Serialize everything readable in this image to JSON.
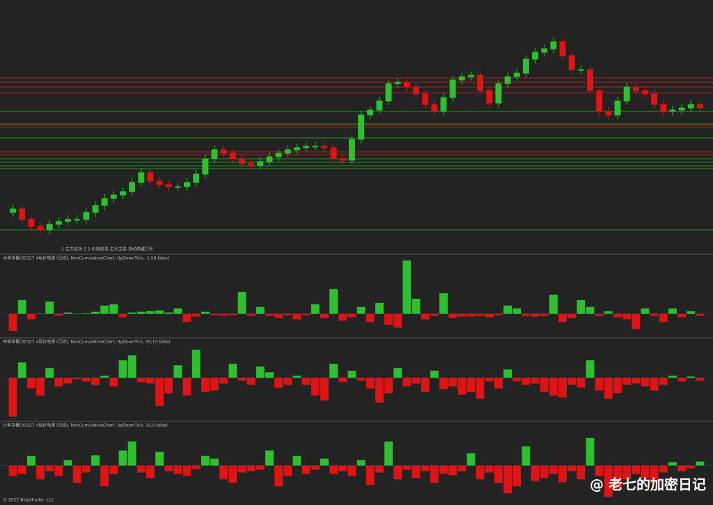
{
  "chart_data": {
    "type": "candlestick",
    "annotation": "1-主力进场 1 2-价格振荡-主买主卖-自动隐藏打开",
    "up_color": "#2fc02f",
    "down_color": "#e01414",
    "ylim": [
      0,
      345
    ],
    "open": [
      55,
      60,
      45,
      35,
      30,
      38,
      42,
      45,
      45,
      55,
      65,
      75,
      80,
      85,
      98,
      112,
      100,
      95,
      92,
      92,
      98,
      110,
      132,
      145,
      140,
      132,
      125,
      122,
      128,
      135,
      140,
      145,
      148,
      150,
      150,
      148,
      132,
      130,
      160,
      195,
      202,
      215,
      240,
      242,
      235,
      225,
      210,
      200,
      220,
      245,
      250,
      252,
      230,
      212,
      240,
      250,
      255,
      275,
      285,
      290,
      300,
      280,
      260,
      260,
      230,
      200,
      195,
      215,
      235,
      230,
      225,
      210,
      200,
      202,
      205,
      210
    ],
    "high": [
      66,
      66,
      51,
      41,
      44,
      48,
      51,
      51,
      61,
      71,
      81,
      86,
      91,
      104,
      118,
      118,
      106,
      101,
      98,
      104,
      116,
      138,
      151,
      151,
      146,
      138,
      131,
      134,
      141,
      146,
      151,
      154,
      156,
      156,
      156,
      154,
      138,
      166,
      201,
      208,
      221,
      246,
      248,
      248,
      241,
      231,
      216,
      226,
      251,
      256,
      258,
      258,
      236,
      246,
      256,
      261,
      281,
      291,
      296,
      306,
      306,
      286,
      266,
      266,
      236,
      206,
      221,
      241,
      241,
      236,
      231,
      216,
      208,
      211,
      216,
      216
    ],
    "low": [
      49,
      39,
      29,
      24,
      24,
      32,
      36,
      39,
      39,
      49,
      59,
      69,
      74,
      79,
      92,
      94,
      89,
      86,
      86,
      86,
      92,
      104,
      126,
      134,
      126,
      119,
      116,
      116,
      122,
      129,
      134,
      139,
      142,
      144,
      142,
      126,
      124,
      124,
      154,
      189,
      196,
      209,
      234,
      229,
      219,
      204,
      194,
      194,
      214,
      239,
      244,
      224,
      206,
      206,
      234,
      244,
      249,
      269,
      279,
      284,
      274,
      254,
      254,
      224,
      194,
      189,
      189,
      209,
      224,
      219,
      204,
      194,
      194,
      196,
      199,
      199
    ],
    "close": [
      60,
      45,
      35,
      30,
      38,
      42,
      45,
      45,
      55,
      65,
      75,
      80,
      85,
      98,
      112,
      100,
      95,
      92,
      92,
      98,
      110,
      132,
      145,
      140,
      132,
      125,
      122,
      128,
      135,
      140,
      145,
      148,
      150,
      150,
      148,
      132,
      130,
      160,
      195,
      202,
      215,
      240,
      242,
      235,
      225,
      210,
      200,
      220,
      245,
      250,
      252,
      230,
      212,
      240,
      250,
      255,
      275,
      285,
      290,
      300,
      280,
      260,
      260,
      230,
      200,
      195,
      215,
      235,
      230,
      225,
      210,
      200,
      202,
      205,
      210,
      205
    ],
    "levels": [
      {
        "value": 248,
        "color": "#b41e1e"
      },
      {
        "value": 242,
        "color": "#b41e1e"
      },
      {
        "value": 235,
        "color": "#b41e1e"
      },
      {
        "value": 227,
        "color": "#b41e1e"
      },
      {
        "value": 180,
        "color": "#b41e1e"
      },
      {
        "value": 177,
        "color": "#b41e1e"
      },
      {
        "value": 142,
        "color": "#b41e1e"
      },
      {
        "value": 138,
        "color": "#b41e1e"
      },
      {
        "value": 200,
        "color": "#1e9a1e"
      },
      {
        "value": 182,
        "color": "#1e9a1e"
      },
      {
        "value": 162,
        "color": "#1e9a1e"
      },
      {
        "value": 132,
        "color": "#1e9a1e"
      },
      {
        "value": 127,
        "color": "#1e9a1e"
      },
      {
        "value": 122,
        "color": "#1e9a1e"
      },
      {
        "value": 118,
        "color": "#1e9a1e"
      },
      {
        "value": 30,
        "color": "#1e9a1e"
      }
    ],
    "panels": [
      {
        "type": "bar",
        "label": "大单净量(30327 4现价电源 (日线), NonCumulativeChart, UpDownTick, -1,50,false)",
        "ylim": [
          -33,
          85
        ],
        "values": [
          -25,
          20,
          -8,
          0,
          18,
          -3,
          2,
          0,
          1,
          3,
          12,
          14,
          -5,
          2,
          3,
          4,
          5,
          2,
          8,
          -12,
          -4,
          3,
          -2,
          -3,
          -2,
          32,
          -3,
          10,
          -3,
          -6,
          -2,
          -8,
          -2,
          14,
          -6,
          36,
          -10,
          -5,
          10,
          -12,
          16,
          -16,
          -20,
          78,
          22,
          -8,
          -3,
          30,
          -6,
          -4,
          -4,
          -3,
          -5,
          -2,
          12,
          8,
          -3,
          -4,
          -3,
          28,
          -12,
          -6,
          20,
          10,
          -3,
          4,
          -5,
          -8,
          -22,
          8,
          -3,
          -12,
          8,
          -5,
          4,
          -3
        ]
      },
      {
        "type": "bar",
        "label": "中单净量(30327 4现价电源 (日线), NonCumulativeChart, UpDownTick, 50,10,false)",
        "ylim": [
          -60,
          55
        ],
        "values": [
          -55,
          22,
          -15,
          -25,
          14,
          -12,
          -8,
          -2,
          -5,
          -10,
          3,
          -12,
          25,
          32,
          -6,
          -8,
          -40,
          -22,
          18,
          -25,
          40,
          -20,
          -18,
          -8,
          20,
          -4,
          -10,
          16,
          8,
          -14,
          -10,
          3,
          -10,
          -25,
          -32,
          20,
          -6,
          10,
          -4,
          -15,
          -35,
          -22,
          14,
          -12,
          -8,
          -20,
          10,
          -16,
          -12,
          -24,
          -20,
          -30,
          -5,
          -15,
          12,
          -5,
          -10,
          -8,
          -20,
          -25,
          -28,
          -10,
          -14,
          25,
          -18,
          -30,
          -22,
          -10,
          -8,
          -12,
          -18,
          -10,
          3,
          -5,
          2,
          -4
        ]
      },
      {
        "type": "bar",
        "label": "小单净量(30327 4现价电源 (日线), NonCumulativeChart, UpDownTick, 10,0,false)",
        "ylim": [
          -55,
          62
        ],
        "values": [
          -15,
          -12,
          14,
          -20,
          -8,
          -15,
          8,
          -25,
          -10,
          15,
          -30,
          -12,
          22,
          35,
          -10,
          -18,
          20,
          -8,
          -12,
          -15,
          -5,
          14,
          10,
          -20,
          -25,
          -10,
          -8,
          -6,
          22,
          -30,
          -15,
          14,
          -12,
          -6,
          10,
          -12,
          -8,
          -15,
          8,
          -28,
          -10,
          35,
          -20,
          -6,
          -18,
          -8,
          -25,
          -12,
          -14,
          -8,
          18,
          -20,
          -10,
          -25,
          -40,
          -30,
          28,
          -22,
          -18,
          -12,
          -24,
          -8,
          -20,
          40,
          -15,
          -45,
          -35,
          -20,
          -12,
          -18,
          -25,
          -10,
          5,
          -8,
          -4,
          6
        ]
      }
    ]
  },
  "footer": "© 2022 NinjaTrader, LLC",
  "watermark": "@ 老七的加密日记"
}
